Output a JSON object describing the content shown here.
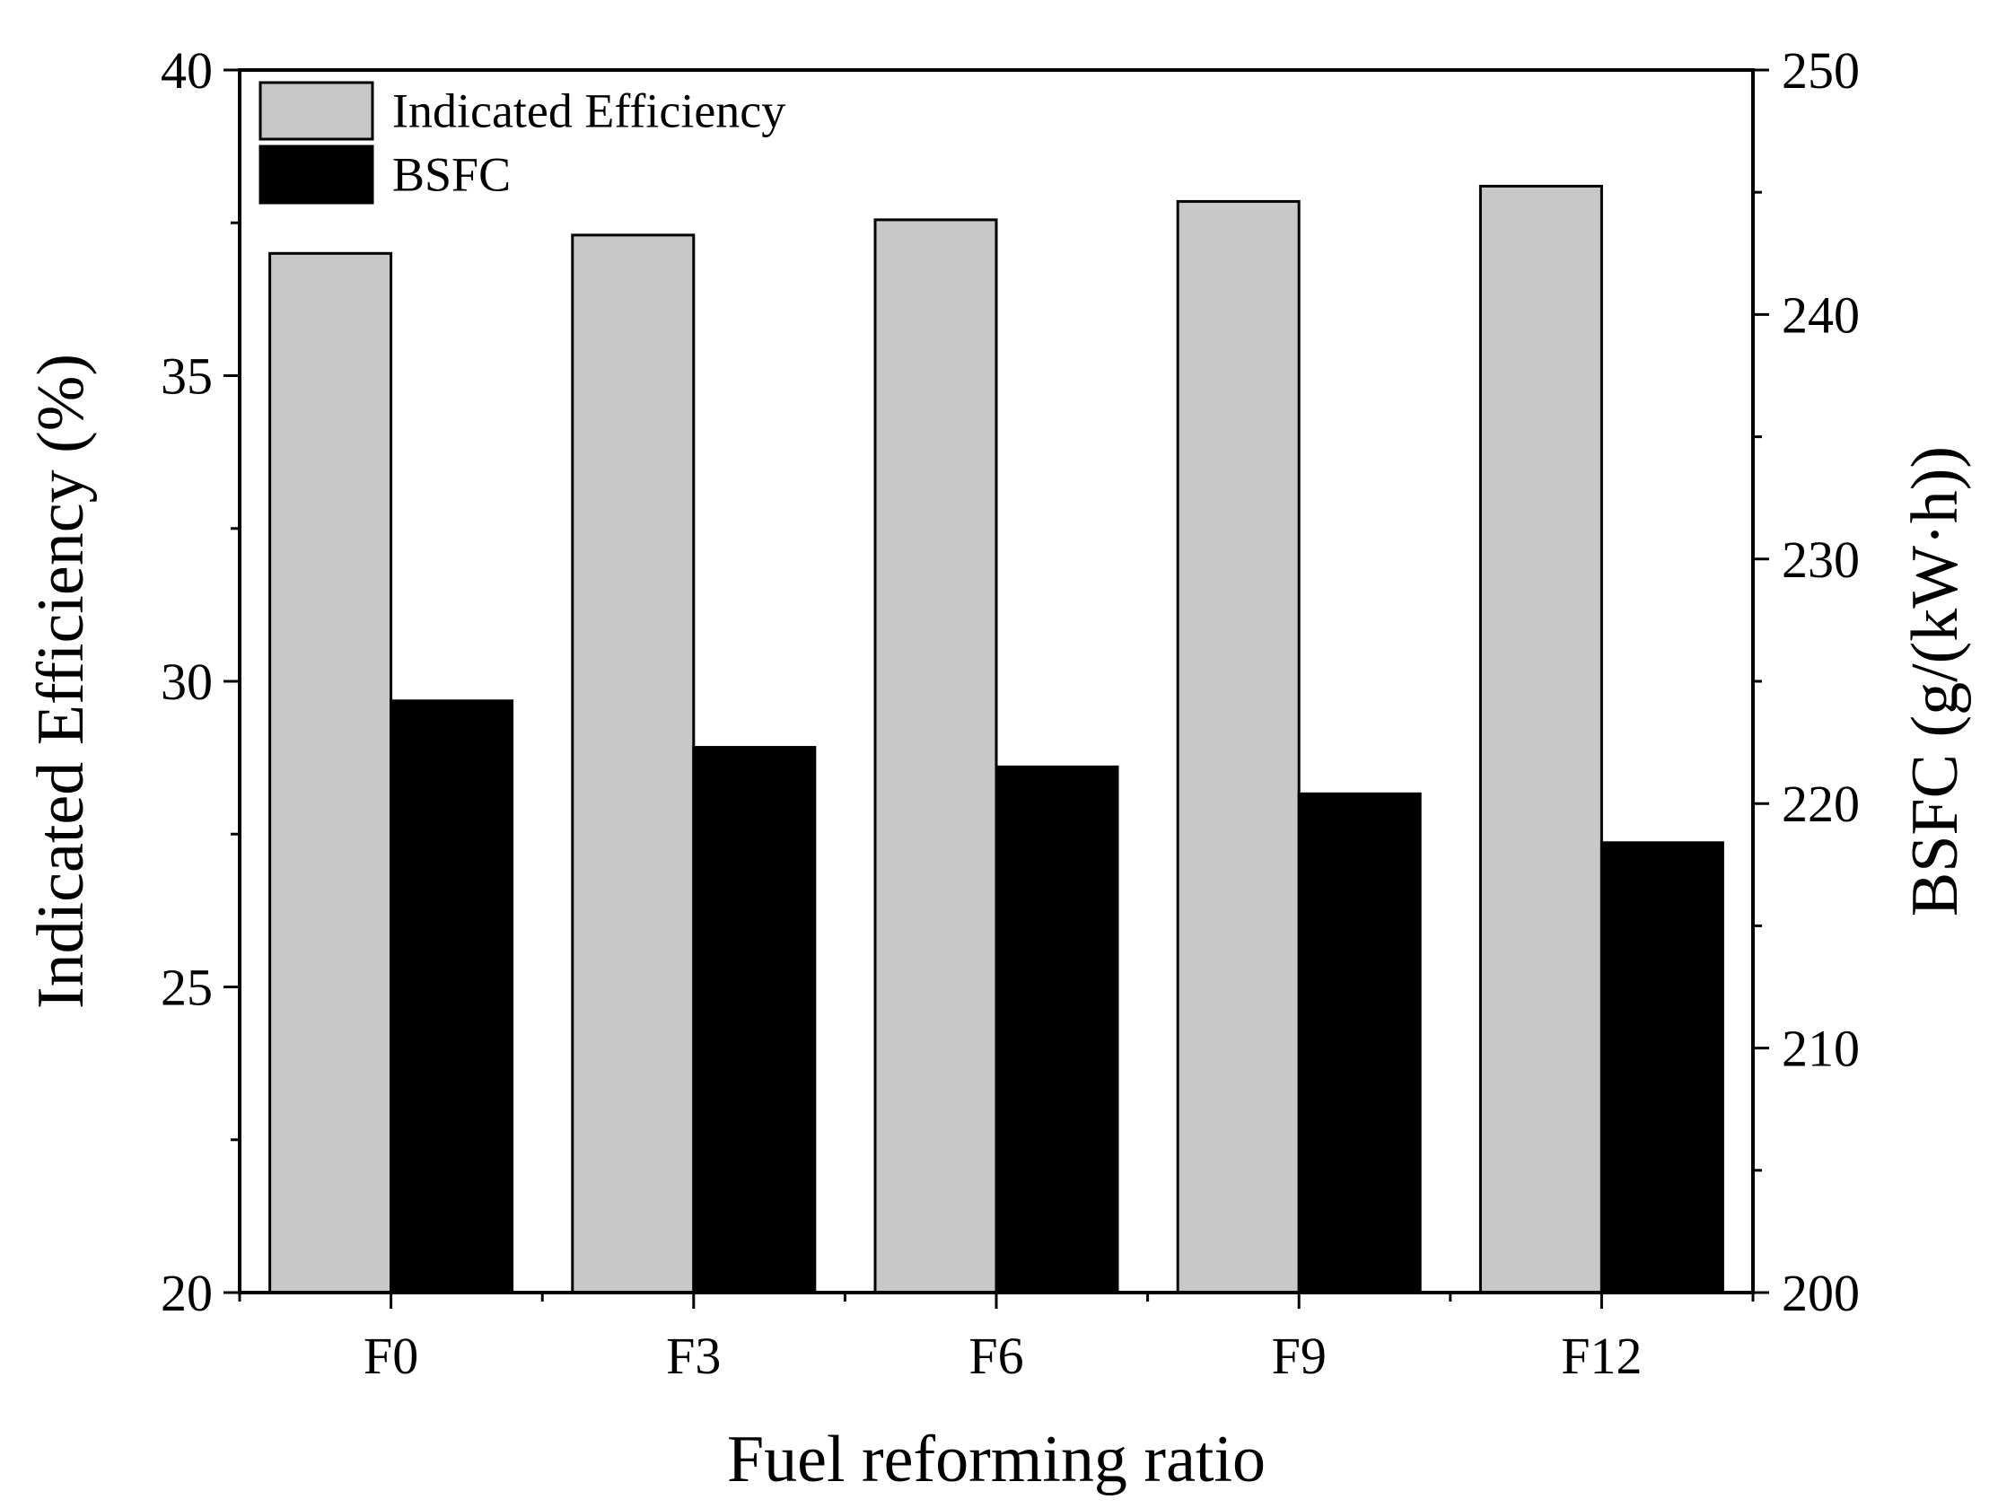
{
  "chart_data": {
    "type": "bar",
    "title": "",
    "xlabel": "Fuel reforming ratio",
    "ylabel": "Indicated Efficiency (%)",
    "y2label": "BSFC (g/(kW·h))",
    "categories": [
      "F0",
      "F3",
      "F6",
      "F9",
      "F12"
    ],
    "ylim": [
      20,
      40
    ],
    "y2lim": [
      200,
      250
    ],
    "yticks": [
      "20",
      "25",
      "30",
      "35",
      "40"
    ],
    "y2ticks": [
      "200",
      "210",
      "220",
      "230",
      "240",
      "250"
    ],
    "series": [
      {
        "name": "Indicated Efficiency",
        "axis": "left",
        "color": "#c8c8c8",
        "values": [
          37.0,
          37.3,
          37.55,
          37.85,
          38.1
        ]
      },
      {
        "name": "BSFC",
        "axis": "right",
        "color": "#000000",
        "values": [
          224.2,
          222.3,
          221.5,
          220.4,
          218.4
        ]
      }
    ],
    "legend": {
      "position": "top-left",
      "entries": [
        "Indicated Efficiency",
        "BSFC"
      ]
    }
  }
}
